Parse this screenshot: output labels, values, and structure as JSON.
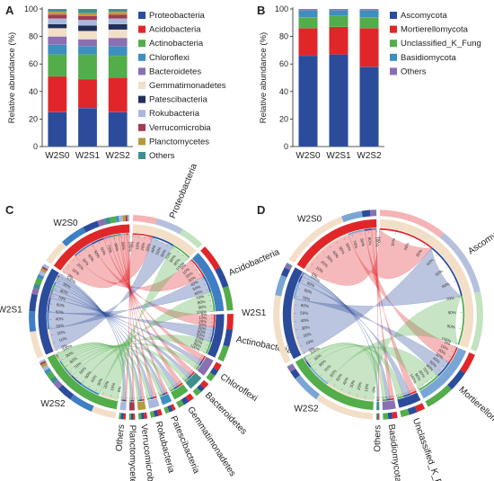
{
  "figure": {
    "panel_letters": [
      "A",
      "B",
      "C",
      "D"
    ]
  },
  "chart_data": [
    {
      "type": "bar",
      "stacked": true,
      "panel": "A",
      "ylabel": "Relative abundance (%)",
      "ylim": [
        0,
        100
      ],
      "yticks": [
        0,
        20,
        40,
        60,
        80,
        100
      ],
      "categories": [
        "W2S0",
        "W2S1",
        "W2S2"
      ],
      "legend_position": "right",
      "series": [
        {
          "name": "Proteobacteria",
          "color": "#2b4c9b",
          "values": [
            25,
            28,
            25
          ]
        },
        {
          "name": "Acidobacteria",
          "color": "#e1262a",
          "values": [
            26,
            21,
            25
          ]
        },
        {
          "name": "Actinobacteria",
          "color": "#52ad4a",
          "values": [
            16,
            18,
            16
          ]
        },
        {
          "name": "Chloroflexi",
          "color": "#3d8fbf",
          "values": [
            7,
            6,
            7
          ]
        },
        {
          "name": "Bacteroidetes",
          "color": "#8a6fb3",
          "values": [
            6,
            5,
            6
          ]
        },
        {
          "name": "Gemmatimonadetes",
          "color": "#f3dfc7",
          "values": [
            6,
            6,
            6
          ]
        },
        {
          "name": "Patescibacteria",
          "color": "#222f5a",
          "values": [
            3,
            4,
            4
          ]
        },
        {
          "name": "Rokubacteria",
          "color": "#a9b9de",
          "values": [
            4,
            4,
            4
          ]
        },
        {
          "name": "Verrucomicrobia",
          "color": "#a13b55",
          "values": [
            3,
            3,
            3
          ]
        },
        {
          "name": "Planctomycetes",
          "color": "#b89a3e",
          "values": [
            2,
            2,
            2
          ]
        },
        {
          "name": "Others",
          "color": "#3e8f8d",
          "values": [
            2,
            3,
            2
          ]
        }
      ]
    },
    {
      "type": "bar",
      "stacked": true,
      "panel": "B",
      "ylabel": "Relative abundance (%)",
      "ylim": [
        0,
        100
      ],
      "yticks": [
        0,
        20,
        40,
        60,
        80,
        100
      ],
      "categories": [
        "W2S0",
        "W2S1",
        "W2S2"
      ],
      "legend_position": "right",
      "series": [
        {
          "name": "Ascomycota",
          "color": "#2b4c9b",
          "values": [
            66,
            67,
            58
          ]
        },
        {
          "name": "Mortierellomycota",
          "color": "#e1262a",
          "values": [
            20,
            20,
            28
          ]
        },
        {
          "name": "Unclassified_K_Fung",
          "color": "#52ad4a",
          "values": [
            8,
            8,
            8
          ]
        },
        {
          "name": "Basidiomycota",
          "color": "#3d8fbf",
          "values": [
            5,
            4,
            5
          ]
        },
        {
          "name": "Others",
          "color": "#8a6fb3",
          "values": [
            1,
            1,
            1
          ]
        }
      ]
    },
    {
      "type": "chord",
      "panel": "C",
      "samples": [
        {
          "name": "W2S0",
          "color": "#e1262a"
        },
        {
          "name": "W2S1",
          "color": "#2b4c9b"
        },
        {
          "name": "W2S2",
          "color": "#52ad4a"
        }
      ],
      "taxa": [
        {
          "name": "Proteobacteria",
          "color": "#f3dfc7"
        },
        {
          "name": "Acidobacteria",
          "color": "#3d7ec4"
        },
        {
          "name": "Actinobacteria",
          "color": "#2b4c9b"
        },
        {
          "name": "Chloroflexi",
          "color": "#8a6fb3"
        },
        {
          "name": "Bacteroidetes",
          "color": "#3e8f8d"
        },
        {
          "name": "Gemmatimonadetes",
          "color": "#52ad4a"
        },
        {
          "name": "Patescibacteria",
          "color": "#3d8fbf"
        },
        {
          "name": "Rokubacteria",
          "color": "#a9b9de"
        },
        {
          "name": "Verrucomicrobia",
          "color": "#b89a3e"
        },
        {
          "name": "Planctomycetes",
          "color": "#a13b55"
        },
        {
          "name": "Others",
          "color": "#a9b9de"
        }
      ],
      "matrix": [
        [
          25,
          26,
          16,
          7,
          6,
          6,
          3,
          4,
          3,
          2,
          2
        ],
        [
          28,
          21,
          18,
          6,
          5,
          6,
          4,
          4,
          3,
          2,
          3
        ],
        [
          25,
          25,
          16,
          7,
          6,
          6,
          4,
          4,
          3,
          2,
          2
        ]
      ]
    },
    {
      "type": "chord",
      "panel": "D",
      "samples": [
        {
          "name": "W2S0",
          "color": "#e1262a"
        },
        {
          "name": "W2S1",
          "color": "#2b4c9b"
        },
        {
          "name": "W2S2",
          "color": "#52ad4a"
        }
      ],
      "taxa": [
        {
          "name": "Ascomycota",
          "color": "#f3dfc7"
        },
        {
          "name": "Mortierellomycota",
          "color": "#7aa6d6"
        },
        {
          "name": "Unclassified_K_Fung",
          "color": "#2b4c9b"
        },
        {
          "name": "Basidiomycota",
          "color": "#8a6fb3"
        },
        {
          "name": "Others",
          "color": "#3e8f8d"
        }
      ],
      "matrix": [
        [
          66,
          20,
          8,
          5,
          1
        ],
        [
          67,
          20,
          8,
          4,
          1
        ],
        [
          58,
          28,
          8,
          5,
          1
        ]
      ]
    }
  ]
}
